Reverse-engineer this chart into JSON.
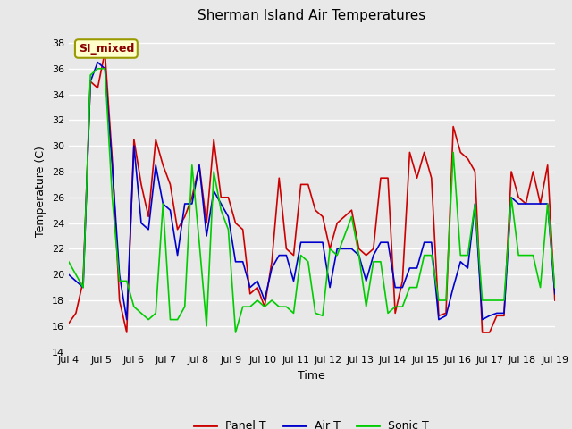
{
  "title": "Sherman Island Air Temperatures",
  "xlabel": "Time",
  "ylabel": "Temperature (C)",
  "annotation": "SI_mixed",
  "ylim": [
    14,
    39
  ],
  "yticks": [
    14,
    16,
    18,
    20,
    22,
    24,
    26,
    28,
    30,
    32,
    34,
    36,
    38
  ],
  "xtick_labels": [
    "Jul 4",
    "Jul 5",
    "Jul 6",
    "Jul 7",
    "Jul 8",
    "Jul 9",
    "Jul 10",
    "Jul 11",
    "Jul 12",
    "Jul 13",
    "Jul 14",
    "Jul 15",
    "Jul 16",
    "Jul 17",
    "Jul 18",
    "Jul 19"
  ],
  "background_color": "#e8e8e8",
  "plot_bg_color": "#e8e8e8",
  "grid_color": "white",
  "panel_T_color": "#cc0000",
  "air_T_color": "#0000cc",
  "sonic_T_color": "#00cc00",
  "line_width": 1.2,
  "legend_labels": [
    "Panel T",
    "Air T",
    "Sonic T"
  ],
  "panel_T": [
    16.2,
    17.0,
    19.5,
    35.0,
    34.5,
    37.3,
    29.0,
    18.0,
    15.5,
    30.5,
    27.0,
    24.5,
    30.5,
    28.5,
    27.0,
    23.5,
    24.5,
    26.0,
    28.5,
    24.0,
    30.5,
    26.0,
    26.0,
    24.0,
    23.5,
    18.5,
    19.0,
    17.5,
    21.0,
    27.5,
    22.0,
    21.5,
    27.0,
    27.0,
    25.0,
    24.5,
    22.0,
    24.0,
    24.5,
    25.0,
    22.0,
    21.5,
    22.0,
    27.5,
    27.5,
    17.0,
    19.5,
    29.5,
    27.5,
    29.5,
    27.5,
    16.8,
    17.0,
    31.5,
    29.5,
    29.0,
    28.0,
    15.5,
    15.5,
    16.8,
    16.8,
    28.0,
    26.0,
    25.5,
    28.0,
    25.5,
    28.5,
    18.0
  ],
  "air_T": [
    20.0,
    19.5,
    19.0,
    35.0,
    36.5,
    36.0,
    28.5,
    20.0,
    16.5,
    30.0,
    24.0,
    23.5,
    28.5,
    25.5,
    25.0,
    21.5,
    25.5,
    25.5,
    28.5,
    23.0,
    26.5,
    25.5,
    24.5,
    21.0,
    21.0,
    19.0,
    19.5,
    18.0,
    20.5,
    21.5,
    21.5,
    19.5,
    22.5,
    22.5,
    22.5,
    22.5,
    19.0,
    22.0,
    22.0,
    22.0,
    21.5,
    19.5,
    21.5,
    22.5,
    22.5,
    19.0,
    19.0,
    20.5,
    20.5,
    22.5,
    22.5,
    16.5,
    16.8,
    19.0,
    21.0,
    20.5,
    25.5,
    16.5,
    16.8,
    17.0,
    17.0,
    26.0,
    25.5,
    25.5,
    25.5,
    25.5,
    25.5,
    18.5
  ],
  "sonic_T": [
    21.0,
    20.0,
    19.0,
    35.5,
    36.0,
    36.0,
    26.0,
    19.5,
    19.5,
    17.5,
    17.0,
    16.5,
    17.0,
    25.5,
    16.5,
    16.5,
    17.5,
    28.5,
    22.5,
    16.0,
    28.0,
    25.0,
    23.5,
    15.5,
    17.5,
    17.5,
    18.0,
    17.5,
    18.0,
    17.5,
    17.5,
    17.0,
    21.5,
    21.0,
    17.0,
    16.8,
    22.0,
    21.5,
    23.0,
    24.5,
    21.5,
    17.5,
    21.0,
    21.0,
    17.0,
    17.5,
    17.5,
    19.0,
    19.0,
    21.5,
    21.5,
    18.0,
    18.0,
    29.5,
    21.5,
    21.5,
    25.5,
    18.0,
    18.0,
    18.0,
    18.0,
    26.0,
    21.5,
    21.5,
    21.5,
    19.0,
    25.5,
    19.0
  ]
}
